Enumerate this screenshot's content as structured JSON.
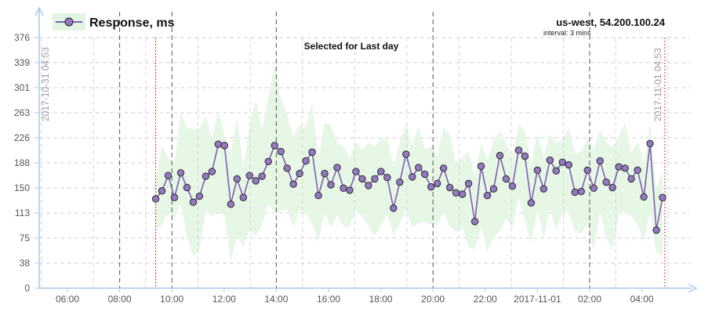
{
  "chart_data": {
    "type": "line",
    "legend": {
      "label": "Response, ms",
      "placement": "top-left"
    },
    "host": "us-west, 54.200.100.24",
    "interval": "interval: 3 mins",
    "annotation": "Selected for Last day",
    "range_start_label": "2017-10-31 04:53",
    "range_end_label": "2017-11-01 04:53",
    "ylim": [
      0,
      376
    ],
    "y_ticks": [
      "0",
      "38",
      "75",
      "113",
      "150",
      "188",
      "226",
      "263",
      "301",
      "339",
      "376"
    ],
    "x_ticks": [
      "06:00",
      "08:00",
      "10:00",
      "12:00",
      "14:00",
      "16:00",
      "18:00",
      "20:00",
      "22:00",
      "2017-11-01",
      "02:00",
      "04:00"
    ],
    "grid": true,
    "colors": {
      "line": "#7e5fae",
      "marker": "#9478c2",
      "band": "#e6f7e6",
      "range_marker": "#cc3333",
      "axis": "#a9c8ea",
      "grid": "#cccccc"
    },
    "series": [
      {
        "name": "Response, ms",
        "values": [
          134,
          146,
          169,
          136,
          173,
          151,
          129,
          138,
          168,
          175,
          216,
          214,
          126,
          164,
          136,
          169,
          161,
          168,
          190,
          214,
          205,
          180,
          156,
          172,
          191,
          204,
          139,
          172,
          155,
          181,
          150,
          147,
          175,
          164,
          154,
          164,
          175,
          166,
          120,
          159,
          201,
          167,
          181,
          171,
          152,
          157,
          180,
          151,
          143,
          141,
          157,
          100,
          183,
          139,
          149,
          199,
          164,
          153,
          207,
          198,
          128,
          177,
          149,
          192,
          176,
          189,
          185,
          144,
          145,
          177,
          150,
          191,
          159,
          151,
          182,
          180,
          164,
          177,
          137,
          217,
          87,
          136
        ]
      }
    ],
    "band_upper": [
      160,
      214,
      195,
      188,
      264,
      240,
      238,
      240,
      258,
      226,
      266,
      228,
      202,
      256,
      180,
      244,
      283,
      238,
      285,
      338,
      285,
      260,
      226,
      246,
      241,
      278,
      194,
      248,
      244,
      218,
      214,
      194,
      220,
      206,
      219,
      212,
      224,
      224,
      182,
      218,
      246,
      214,
      242,
      209,
      213,
      198,
      241,
      230,
      186,
      196,
      206,
      168,
      218,
      192,
      220,
      236,
      218,
      196,
      246,
      236,
      186,
      232,
      198,
      231,
      218,
      221,
      241,
      202,
      206,
      224,
      208,
      238,
      219,
      211,
      228,
      248,
      202,
      220,
      187,
      246,
      147,
      178
    ],
    "band_lower": [
      88,
      95,
      115,
      102,
      128,
      77,
      48,
      58,
      116,
      108,
      115,
      108,
      41,
      77,
      62,
      88,
      78,
      94,
      128,
      112,
      116,
      118,
      90,
      118,
      112,
      97,
      69,
      115,
      91,
      110,
      93,
      92,
      117,
      108,
      93,
      78,
      95,
      110,
      80,
      96,
      118,
      90,
      98,
      99,
      96,
      94,
      115,
      92,
      85,
      92,
      62,
      58,
      92,
      55,
      76,
      86,
      105,
      89,
      136,
      102,
      66,
      118,
      74,
      120,
      86,
      116,
      114,
      84,
      82,
      96,
      56,
      116,
      76,
      58,
      111,
      115,
      108,
      96,
      69,
      115,
      55,
      48
    ]
  }
}
